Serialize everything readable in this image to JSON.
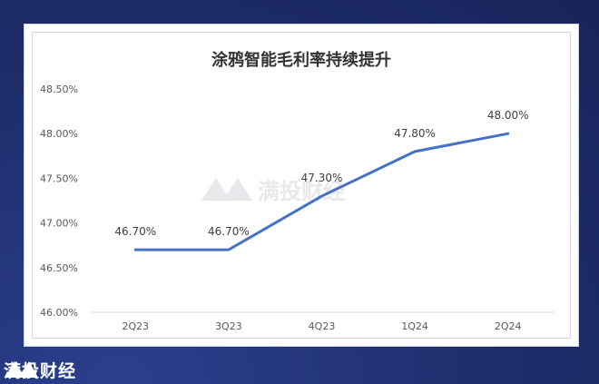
{
  "chart_data": {
    "type": "line",
    "title": "涂鸦智能毛利率持续提升",
    "categories": [
      "2Q23",
      "3Q23",
      "4Q23",
      "1Q24",
      "2Q24"
    ],
    "series": [
      {
        "values": [
          46.7,
          46.7,
          47.3,
          47.8,
          48.0
        ]
      }
    ],
    "data_labels": [
      "46.70%",
      "46.70%",
      "47.30%",
      "47.80%",
      "48.00%"
    ],
    "y_ticks": [
      "46.00%",
      "46.50%",
      "47.00%",
      "47.50%",
      "48.00%",
      "48.50%"
    ],
    "ylim": [
      46.0,
      48.5
    ],
    "y_step": 0.5,
    "grid": false,
    "line_color": "#4472c4"
  },
  "watermark": {
    "text": "满投财经"
  },
  "footer": {
    "brand": "满投财经"
  }
}
